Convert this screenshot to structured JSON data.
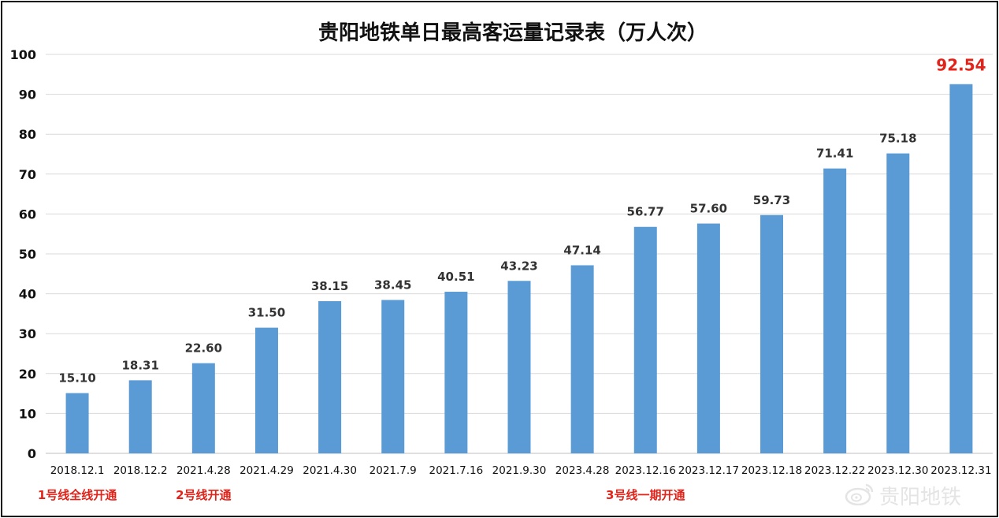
{
  "chart_data": {
    "type": "bar",
    "title": "贵阳地铁单日最高客运量记录表（万人次）",
    "categories": [
      "2018.12.1",
      "2018.12.2",
      "2021.4.28",
      "2021.4.29",
      "2021.4.30",
      "2021.7.9",
      "2021.7.16",
      "2021.9.30",
      "2023.4.28",
      "2023.12.16",
      "2023.12.17",
      "2023.12.18",
      "2023.12.22",
      "2023.12.30",
      "2023.12.31"
    ],
    "values": [
      15.1,
      18.31,
      22.6,
      31.5,
      38.15,
      38.45,
      40.51,
      43.23,
      47.14,
      56.77,
      57.6,
      59.73,
      71.41,
      75.18,
      92.54
    ],
    "value_labels": [
      "15.10",
      "18.31",
      "22.60",
      "31.50",
      "38.15",
      "38.45",
      "40.51",
      "43.23",
      "47.14",
      "56.77",
      "57.60",
      "59.73",
      "71.41",
      "75.18",
      "92.54"
    ],
    "ylim": [
      0,
      100
    ],
    "yticks": [
      0,
      10,
      20,
      30,
      40,
      50,
      60,
      70,
      80,
      90,
      100
    ],
    "grid": true,
    "highlight_index": 14,
    "colors": {
      "bar": "#5b9bd5",
      "highlight_label": "#e2231a",
      "annotation": "#e2231a",
      "grid": "#d9d9d9"
    },
    "annotations": [
      {
        "text": "1号线全线开通",
        "category_index": 0
      },
      {
        "text": "2号线开通",
        "category_index": 2
      },
      {
        "text": "3号线一期开通",
        "category_index": 9
      }
    ]
  },
  "watermark": {
    "text": "贵阳地铁",
    "icon": "weibo-icon"
  }
}
